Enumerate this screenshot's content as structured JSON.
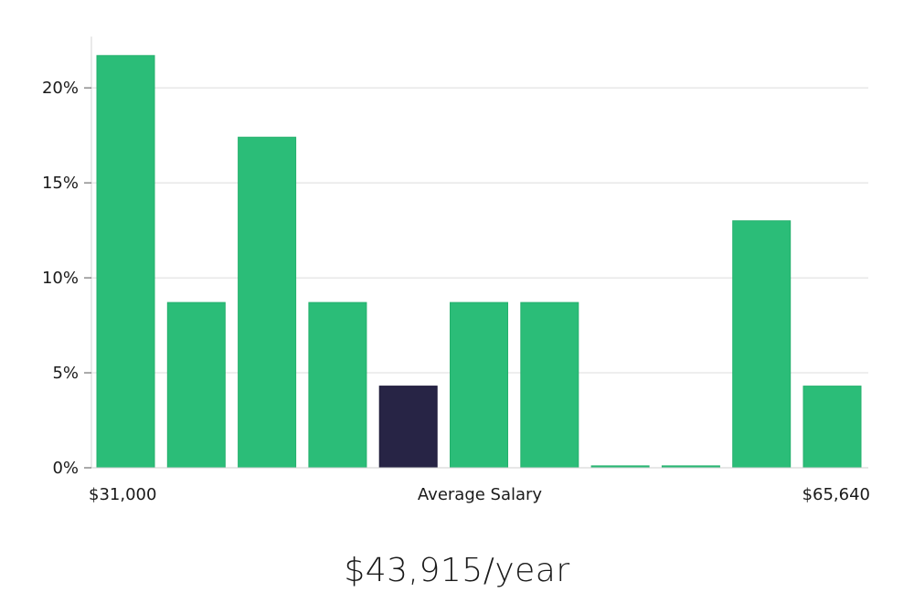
{
  "chart_data": {
    "type": "bar",
    "title": "",
    "xlabel": "Average Salary",
    "x_min_label": "$31,000",
    "x_max_label": "$65,640",
    "ylabel": "",
    "ylim": [
      0,
      22.7
    ],
    "y_ticks": [
      0,
      5,
      10,
      15,
      20
    ],
    "y_tick_labels": [
      "0%",
      "5%",
      "10%",
      "15%",
      "20%"
    ],
    "grid": true,
    "values": [
      21.7,
      8.7,
      17.4,
      8.7,
      4.3,
      8.7,
      8.7,
      0.1,
      0.1,
      13.0,
      4.3
    ],
    "highlight_index": 4,
    "bar_color": "#2bbd78",
    "highlight_color": "#272445"
  },
  "summary": {
    "salary": "$43,915/year"
  }
}
